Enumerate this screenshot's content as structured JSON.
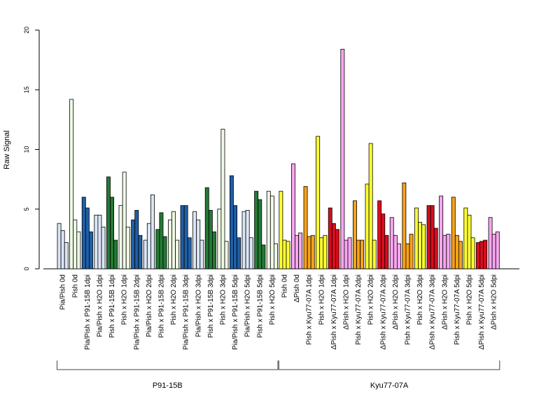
{
  "chart_data": {
    "type": "bar",
    "ylabel": "Raw Signal",
    "ylim": [
      0,
      20
    ],
    "yticks": [
      0,
      5,
      10,
      15,
      20
    ],
    "grid": false,
    "categories": [
      "Pia/Pish 0d",
      "Pish 0d",
      "Pia/Pish x P91-15B 1dpi",
      "Pia/Pish x H2O 1dpi",
      "Pish x P91-15B 1dpi",
      "Pish x H2O 1dpi",
      "Pia/Pish x P91-15B 2dpi",
      "Pia/Pish x H2O 2dpi",
      "Pish x P91-15B 2dpi",
      "Pish x H2O 2dpi",
      "Pia/Pish x P91-15B 3dpi",
      "Pia/Pish x H2O 3dpi",
      "Pish x P91-15B 3dpi",
      "Pish x H2O 3dpi",
      "Pia/Pish x P91-15B 5dpi",
      "Pia/Pish x H2O 5dpi",
      "Pish x P91-15B 5dpi",
      "Pish x H2O 5dpi",
      "Pish 0d",
      "ΔPish 0d",
      "Pish x Kyu77-07A 1dpi",
      "Pish x H2O 1dpi",
      "ΔPish x Kyu77-07A 1dpi",
      "ΔPish x H2O 1dpi",
      "Pish x Kyu77-07A 2dpi",
      "Pish x H2O 2dpi",
      "ΔPish x Kyu77-07A 2dpi",
      "ΔPish x H2O 2dpi",
      "Pish x Kyu77-07A 3dpi",
      "Pish x H2O 3dpi",
      "ΔPish x Kyu77-07A 3dpi",
      "ΔPish x H2O 3dpi",
      "Pish x Kyu77-07A 5dpi",
      "Pish x H2O 5dpi",
      "ΔPish x Kyu77-07A 5dpi",
      "ΔPish x H2O 5dpi"
    ],
    "values": [
      [
        3.8,
        3.2,
        2.2
      ],
      [
        14.2,
        4.1,
        3.1
      ],
      [
        6.0,
        5.1,
        3.1
      ],
      [
        4.5,
        4.5,
        3.5
      ],
      [
        7.7,
        6.0,
        2.4
      ],
      [
        5.3,
        8.1,
        3.5
      ],
      [
        4.1,
        4.9,
        2.8
      ],
      [
        2.4,
        3.8,
        6.2
      ],
      [
        3.3,
        4.7,
        2.7
      ],
      [
        4.1,
        4.8,
        2.4
      ],
      [
        5.3,
        5.3,
        2.6
      ],
      [
        4.8,
        4.1,
        2.4
      ],
      [
        6.8,
        4.9,
        3.1
      ],
      [
        5.0,
        11.7,
        2.3
      ],
      [
        7.8,
        5.3,
        2.6
      ],
      [
        4.8,
        4.9,
        2.6
      ],
      [
        6.5,
        5.8,
        2.0
      ],
      [
        6.5,
        6.1,
        2.1
      ],
      [
        6.5,
        2.4,
        2.3
      ],
      [
        8.8,
        2.8,
        3.0
      ],
      [
        6.9,
        2.7,
        2.8
      ],
      [
        11.1,
        2.6,
        2.8
      ],
      [
        5.1,
        3.8,
        3.3
      ],
      [
        18.4,
        2.4,
        2.6
      ],
      [
        5.7,
        2.4,
        2.4
      ],
      [
        7.1,
        10.5,
        2.4
      ],
      [
        5.7,
        4.6,
        2.8
      ],
      [
        4.3,
        2.8,
        2.1
      ],
      [
        7.2,
        2.1,
        2.9
      ],
      [
        5.1,
        3.9,
        3.7
      ],
      [
        5.3,
        5.3,
        3.4
      ],
      [
        6.1,
        2.8,
        2.9
      ],
      [
        6.0,
        2.8,
        2.3
      ],
      [
        5.1,
        4.5,
        2.6
      ],
      [
        2.2,
        2.3,
        2.4
      ],
      [
        4.3,
        2.9,
        3.1
      ]
    ],
    "colors": [
      "#dbe6f5",
      "#f0fbe6",
      "#1f5fa6",
      "#dbe6f5",
      "#247a35",
      "#f0fbe6",
      "#1f5fa6",
      "#dbe6f5",
      "#247a35",
      "#f0fbe6",
      "#1f5fa6",
      "#dbe6f5",
      "#247a35",
      "#f0fbe6",
      "#1f5fa6",
      "#dbe6f5",
      "#247a35",
      "#f0fbe6",
      "#ffff33",
      "#f9a6f0",
      "#f7a21b",
      "#ffff33",
      "#d90d1e",
      "#f9a6f0",
      "#f7a21b",
      "#ffff33",
      "#d90d1e",
      "#f9a6f0",
      "#f7a21b",
      "#ffff33",
      "#d90d1e",
      "#f9a6f0",
      "#f7a21b",
      "#ffff33",
      "#d90d1e",
      "#f9a6f0"
    ],
    "groups": [
      {
        "label": "P91-15B",
        "from": 0,
        "to": 17
      },
      {
        "label": "Kyu77-07A",
        "from": 18,
        "to": 35
      }
    ]
  }
}
